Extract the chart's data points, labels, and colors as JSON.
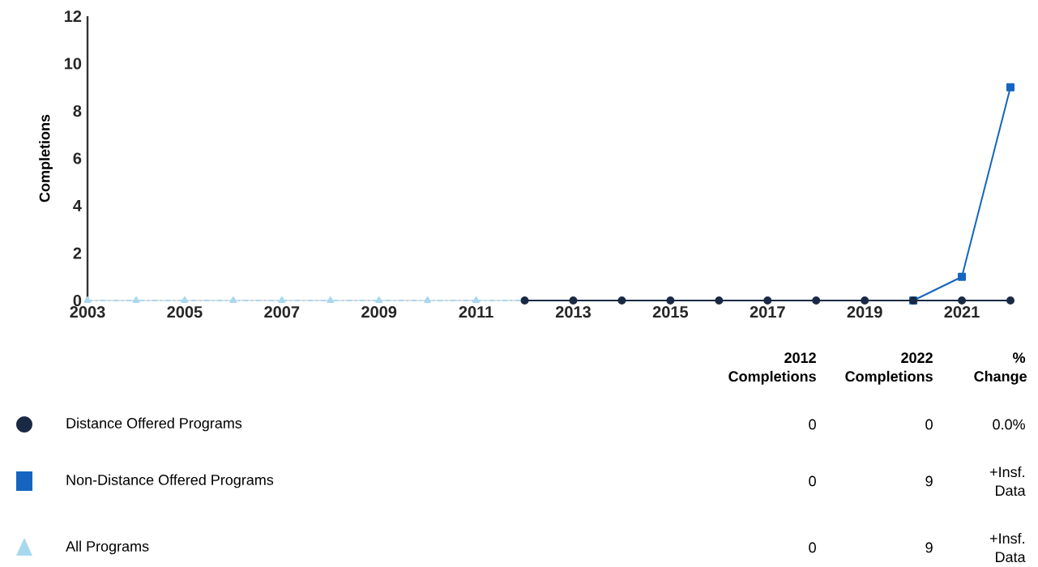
{
  "chart_data": {
    "type": "line",
    "ylabel": "Completions",
    "x": [
      2003,
      2004,
      2005,
      2006,
      2007,
      2008,
      2009,
      2010,
      2011,
      2012,
      2013,
      2014,
      2015,
      2016,
      2017,
      2018,
      2019,
      2020,
      2021,
      2022
    ],
    "series": [
      {
        "name": "Distance Offered Programs",
        "color": "#1a2a44",
        "marker": "circle",
        "line_style": "solid",
        "values": [
          null,
          null,
          null,
          null,
          null,
          null,
          null,
          null,
          null,
          0,
          0,
          0,
          0,
          0,
          0,
          0,
          0,
          0,
          0,
          0
        ]
      },
      {
        "name": "Non-Distance Offered Programs",
        "color": "#1565c0",
        "marker": "square",
        "line_style": "solid",
        "values": [
          null,
          null,
          null,
          null,
          null,
          null,
          null,
          null,
          null,
          null,
          null,
          null,
          null,
          null,
          null,
          null,
          null,
          0,
          1,
          9
        ]
      },
      {
        "name": "All Programs",
        "color": "#a8d8f0",
        "marker": "triangle",
        "line_style": "dashdotted",
        "values": [
          0,
          0,
          0,
          0,
          0,
          0,
          0,
          0,
          0,
          0,
          null,
          null,
          null,
          null,
          null,
          null,
          null,
          null,
          null,
          null
        ]
      }
    ],
    "xlim": [
      2003,
      2022
    ],
    "xticks": [
      2003,
      2005,
      2007,
      2009,
      2011,
      2013,
      2015,
      2017,
      2019,
      2021
    ],
    "ylim": [
      0,
      12
    ],
    "yticks": [
      0,
      2,
      4,
      6,
      8,
      10,
      12
    ],
    "grid": false,
    "legend": "bottom",
    "annotations": [
      "2012 Completions",
      "2022 Completions",
      "% Change",
      "0",
      "0",
      "0.0%",
      "0",
      "9",
      "+Insf. Data",
      "0",
      "9",
      "+Insf. Data"
    ]
  }
}
